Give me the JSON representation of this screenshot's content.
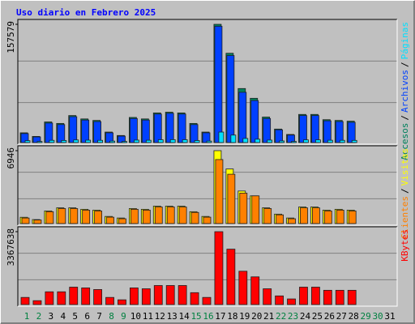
{
  "chart_data": {
    "type": "bar",
    "title": "Uso diario en Febrero 2025",
    "separator": "/",
    "categories": [
      "1",
      "2",
      "3",
      "4",
      "5",
      "6",
      "7",
      "8",
      "9",
      "10",
      "11",
      "12",
      "13",
      "14",
      "15",
      "16",
      "17",
      "18",
      "19",
      "20",
      "21",
      "22",
      "23",
      "24",
      "25",
      "26",
      "27",
      "28",
      "29",
      "30",
      "31"
    ],
    "weekend_days": [
      0,
      1,
      7,
      8,
      14,
      15,
      21,
      22,
      28,
      29
    ],
    "weekend_color": "#008040",
    "panels": [
      {
        "ylim": [
          0,
          157579
        ],
        "yticks": [
          157579
        ],
        "series": [
          {
            "name": "Accesos",
            "color": "#00805c",
            "values": [
              13000,
              8200,
              27500,
              25500,
              36000,
              31500,
              29500,
              14000,
              9400,
              33500,
              31500,
              39500,
              40500,
              39500,
              25500,
              14000,
              157579,
              119000,
              72000,
              59000,
              34000,
              18000,
              10800,
              37500,
              37500,
              30500,
              29500,
              28500,
              null,
              null,
              null
            ]
          },
          {
            "name": "Archivos",
            "color": "#0040ff",
            "values": [
              12000,
              7500,
              26000,
              24000,
              34500,
              30000,
              28000,
              13000,
              8600,
              32000,
              30000,
              38000,
              39000,
              38000,
              24000,
              13000,
              155000,
              116000,
              67000,
              56000,
              32000,
              17000,
              10000,
              36000,
              36000,
              29000,
              28000,
              27000,
              null,
              null,
              null
            ]
          },
          {
            "name": "Páginas",
            "color": "#00e0ff",
            "values": [
              2500,
              1500,
              3000,
              2800,
              3500,
              3200,
              3000,
              2000,
              1500,
              3300,
              3100,
              3800,
              3900,
              3800,
              2700,
              2000,
              14000,
              10000,
              5500,
              4500,
              3300,
              2200,
              1500,
              3600,
              3600,
              3100,
              3000,
              2900,
              null,
              null,
              null
            ]
          }
        ]
      },
      {
        "ylim": [
          0,
          6946
        ],
        "yticks": [
          6946
        ],
        "series": [
          {
            "name": "Clientes",
            "color": "#ff8000",
            "values": [
              530,
              340,
              1130,
              1430,
              1430,
              1280,
              1200,
              610,
              460,
              1360,
              1280,
              1580,
              1580,
              1580,
              1060,
              610,
              6100,
              4700,
              2900,
              2640,
              1430,
              830,
              460,
              1500,
              1500,
              1200,
              1280,
              1200,
              null,
              null,
              null
            ]
          },
          {
            "name": "Visitas",
            "color": "#ffff00",
            "values": [
              600,
              380,
              1200,
              1500,
              1500,
              1360,
              1280,
              680,
              530,
              1430,
              1360,
              1660,
              1660,
              1660,
              1130,
              680,
              6946,
              5200,
              3100,
              2640,
              1500,
              900,
              530,
              1580,
              1580,
              1280,
              1360,
              1280,
              null,
              null,
              null
            ]
          }
        ]
      },
      {
        "ylim": [
          0,
          3367638
        ],
        "yticks": [
          3367638
        ],
        "series": [
          {
            "name": "KBytes",
            "color": "#ff0000",
            "values": [
              330000,
              180000,
              590000,
              590000,
              805000,
              770000,
              695000,
              330000,
              220000,
              770000,
              730000,
              880000,
              880000,
              880000,
              550000,
              330000,
              3367638,
              2560000,
              1540000,
              1280000,
              730000,
              400000,
              260000,
              805000,
              805000,
              660000,
              660000,
              660000,
              null,
              null,
              null
            ]
          }
        ]
      }
    ]
  }
}
